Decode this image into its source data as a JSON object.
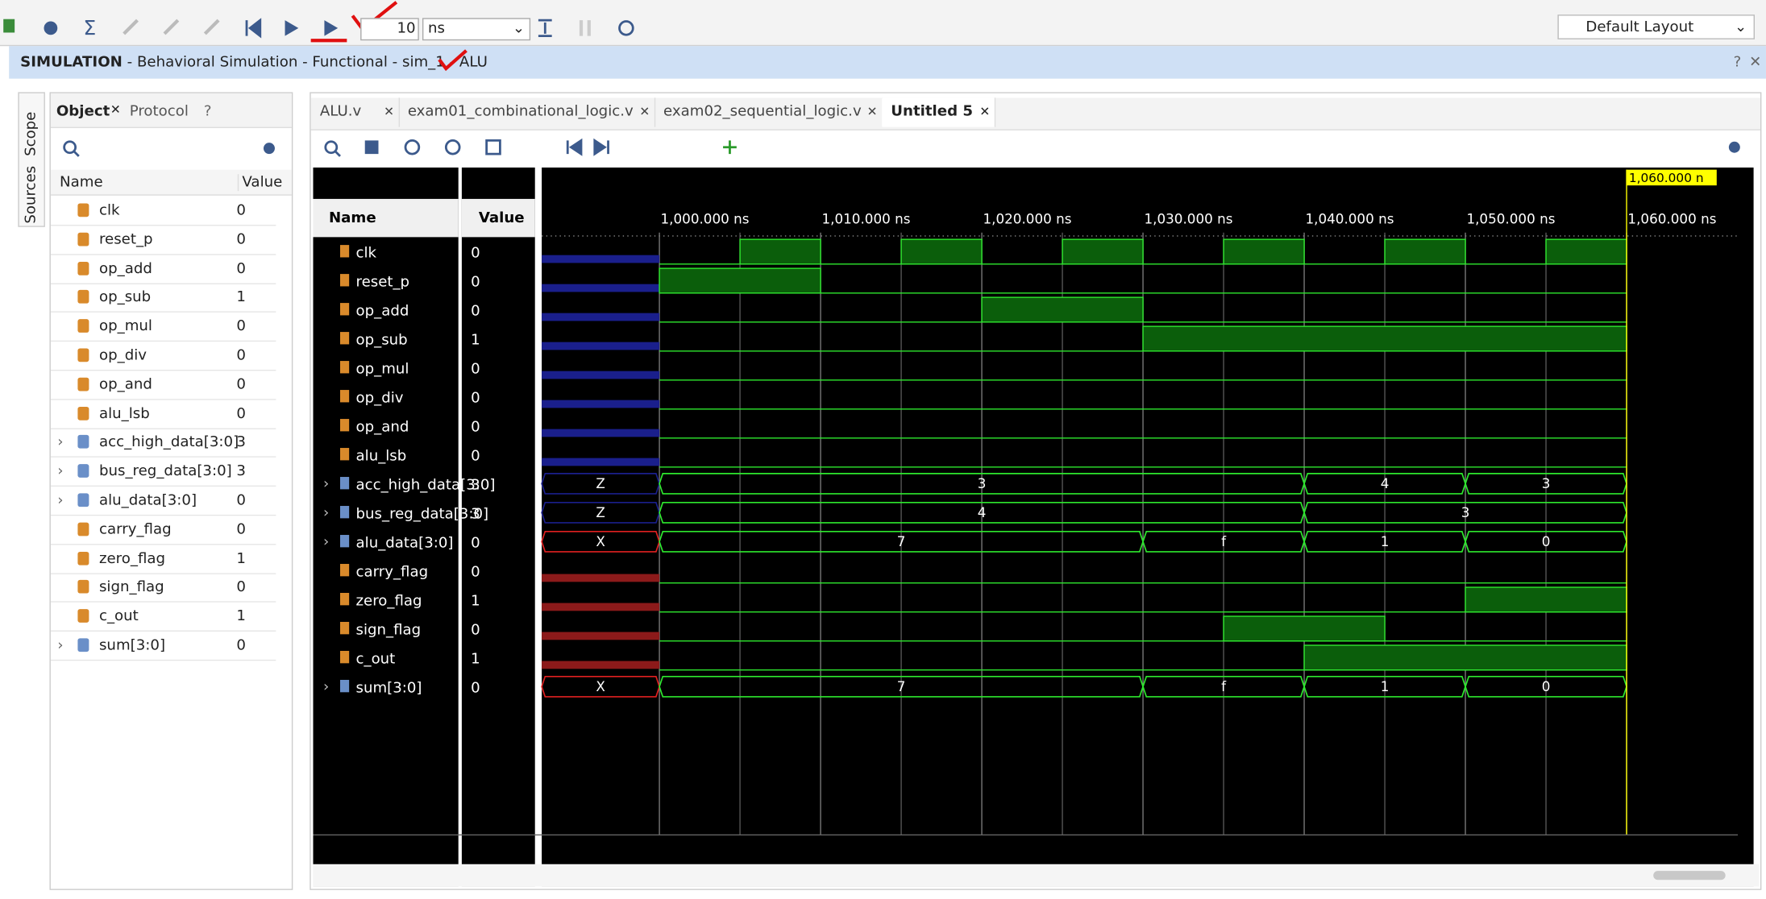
{
  "toolbar": {
    "time_value": "10",
    "time_unit": "ns",
    "layout": "Default Layout"
  },
  "header": {
    "title": "SIMULATION",
    "subtitle": "- Behavioral Simulation - Functional - sim_1 - ALU"
  },
  "side_tabs": [
    "Scope",
    "Sources"
  ],
  "objects": {
    "tabs": [
      "Object",
      "Protocol"
    ],
    "columns": [
      "Name",
      "Value"
    ],
    "rows": [
      {
        "name": "clk",
        "value": "0"
      },
      {
        "name": "reset_p",
        "value": "0"
      },
      {
        "name": "op_add",
        "value": "0"
      },
      {
        "name": "op_sub",
        "value": "1"
      },
      {
        "name": "op_mul",
        "value": "0"
      },
      {
        "name": "op_div",
        "value": "0"
      },
      {
        "name": "op_and",
        "value": "0"
      },
      {
        "name": "alu_lsb",
        "value": "0"
      },
      {
        "name": "acc_high_data[3:0]",
        "value": "3",
        "expandable": true
      },
      {
        "name": "bus_reg_data[3:0]",
        "value": "3",
        "expandable": true
      },
      {
        "name": "alu_data[3:0]",
        "value": "0",
        "expandable": true
      },
      {
        "name": "carry_flag",
        "value": "0"
      },
      {
        "name": "zero_flag",
        "value": "1"
      },
      {
        "name": "sign_flag",
        "value": "0"
      },
      {
        "name": "c_out",
        "value": "1"
      },
      {
        "name": "sum[3:0]",
        "value": "0",
        "expandable": true
      }
    ]
  },
  "editor": {
    "tabs": [
      "ALU.v",
      "exam01_combinational_logic.v",
      "exam02_sequential_logic.v",
      "Untitled 5"
    ]
  },
  "waveform": {
    "columns": [
      "Name",
      "Value"
    ],
    "xlim": [
      992.7,
      1066.9
    ],
    "undefined_until": 1000,
    "xticks": [
      {
        "value": 1000,
        "label": "1,000.000 ns"
      },
      {
        "value": 1010,
        "label": "1,010.000 ns"
      },
      {
        "value": 1020,
        "label": "1,020.000 ns"
      },
      {
        "value": 1030,
        "label": "1,030.000 ns"
      },
      {
        "value": 1040,
        "label": "1,040.000 ns"
      },
      {
        "value": 1050,
        "label": "1,050.000 ns"
      },
      {
        "value": 1060,
        "label": "1,060.000 ns"
      }
    ],
    "cursor": {
      "value": 1060,
      "label": "1,060.000 n"
    },
    "signals": [
      {
        "name": "clk",
        "value": "0",
        "init_color": "#1a1f8c",
        "highs": [
          [
            1005,
            1010
          ],
          [
            1015,
            1020
          ],
          [
            1025,
            1030
          ],
          [
            1035,
            1040
          ],
          [
            1045,
            1050
          ],
          [
            1055,
            1060
          ]
        ]
      },
      {
        "name": "reset_p",
        "value": "0",
        "init_color": "#1a1f8c",
        "highs": [
          [
            1000,
            1010
          ]
        ]
      },
      {
        "name": "op_add",
        "value": "0",
        "init_color": "#1a1f8c",
        "highs": [
          [
            1020,
            1030
          ]
        ]
      },
      {
        "name": "op_sub",
        "value": "1",
        "init_color": "#1a1f8c",
        "highs": [
          [
            1030,
            1060
          ]
        ]
      },
      {
        "name": "op_mul",
        "value": "0",
        "init_color": "#1a1f8c",
        "highs": []
      },
      {
        "name": "op_div",
        "value": "0",
        "init_color": "#1a1f8c",
        "highs": []
      },
      {
        "name": "op_and",
        "value": "0",
        "init_color": "#1a1f8c",
        "highs": []
      },
      {
        "name": "alu_lsb",
        "value": "0",
        "init_color": "#1a1f8c",
        "highs": []
      },
      {
        "name": "acc_high_data[3:0]",
        "value": "3",
        "expandable": true,
        "segments": [
          {
            "label": "Z",
            "start": 992.7,
            "end": 1000,
            "color": "#1a1f8c"
          },
          {
            "label": "3",
            "start": 1000,
            "end": 1040,
            "color": "#2ee82e"
          },
          {
            "label": "4",
            "start": 1040,
            "end": 1050,
            "color": "#2ee82e"
          },
          {
            "label": "3",
            "start": 1050,
            "end": 1060,
            "color": "#2ee82e"
          }
        ]
      },
      {
        "name": "bus_reg_data[3:0]",
        "value": "3",
        "expandable": true,
        "segments": [
          {
            "label": "Z",
            "start": 992.7,
            "end": 1000,
            "color": "#1a1f8c"
          },
          {
            "label": "4",
            "start": 1000,
            "end": 1040,
            "color": "#2ee82e"
          },
          {
            "label": "3",
            "start": 1040,
            "end": 1060,
            "color": "#2ee82e"
          }
        ]
      },
      {
        "name": "alu_data[3:0]",
        "value": "0",
        "expandable": true,
        "segments": [
          {
            "label": "X",
            "start": 992.7,
            "end": 1000,
            "color": "#e02020"
          },
          {
            "label": "7",
            "start": 1000,
            "end": 1030,
            "color": "#2ee82e"
          },
          {
            "label": "f",
            "start": 1030,
            "end": 1040,
            "color": "#2ee82e"
          },
          {
            "label": "1",
            "start": 1040,
            "end": 1050,
            "color": "#2ee82e"
          },
          {
            "label": "0",
            "start": 1050,
            "end": 1060,
            "color": "#2ee82e"
          }
        ]
      },
      {
        "name": "carry_flag",
        "value": "0",
        "init_color": "#8c1a1a",
        "highs": []
      },
      {
        "name": "zero_flag",
        "value": "1",
        "init_color": "#8c1a1a",
        "highs": [
          [
            1050,
            1060
          ]
        ]
      },
      {
        "name": "sign_flag",
        "value": "0",
        "init_color": "#8c1a1a",
        "highs": [
          [
            1035,
            1045
          ]
        ]
      },
      {
        "name": "c_out",
        "value": "1",
        "init_color": "#8c1a1a",
        "highs": [
          [
            1040,
            1060
          ]
        ]
      },
      {
        "name": "sum[3:0]",
        "value": "0",
        "expandable": true,
        "segments": [
          {
            "label": "X",
            "start": 992.7,
            "end": 1000,
            "color": "#e02020"
          },
          {
            "label": "7",
            "start": 1000,
            "end": 1030,
            "color": "#2ee82e"
          },
          {
            "label": "f",
            "start": 1030,
            "end": 1040,
            "color": "#2ee82e"
          },
          {
            "label": "1",
            "start": 1040,
            "end": 1050,
            "color": "#2ee82e"
          },
          {
            "label": "0",
            "start": 1050,
            "end": 1060,
            "color": "#2ee82e"
          }
        ]
      }
    ]
  }
}
